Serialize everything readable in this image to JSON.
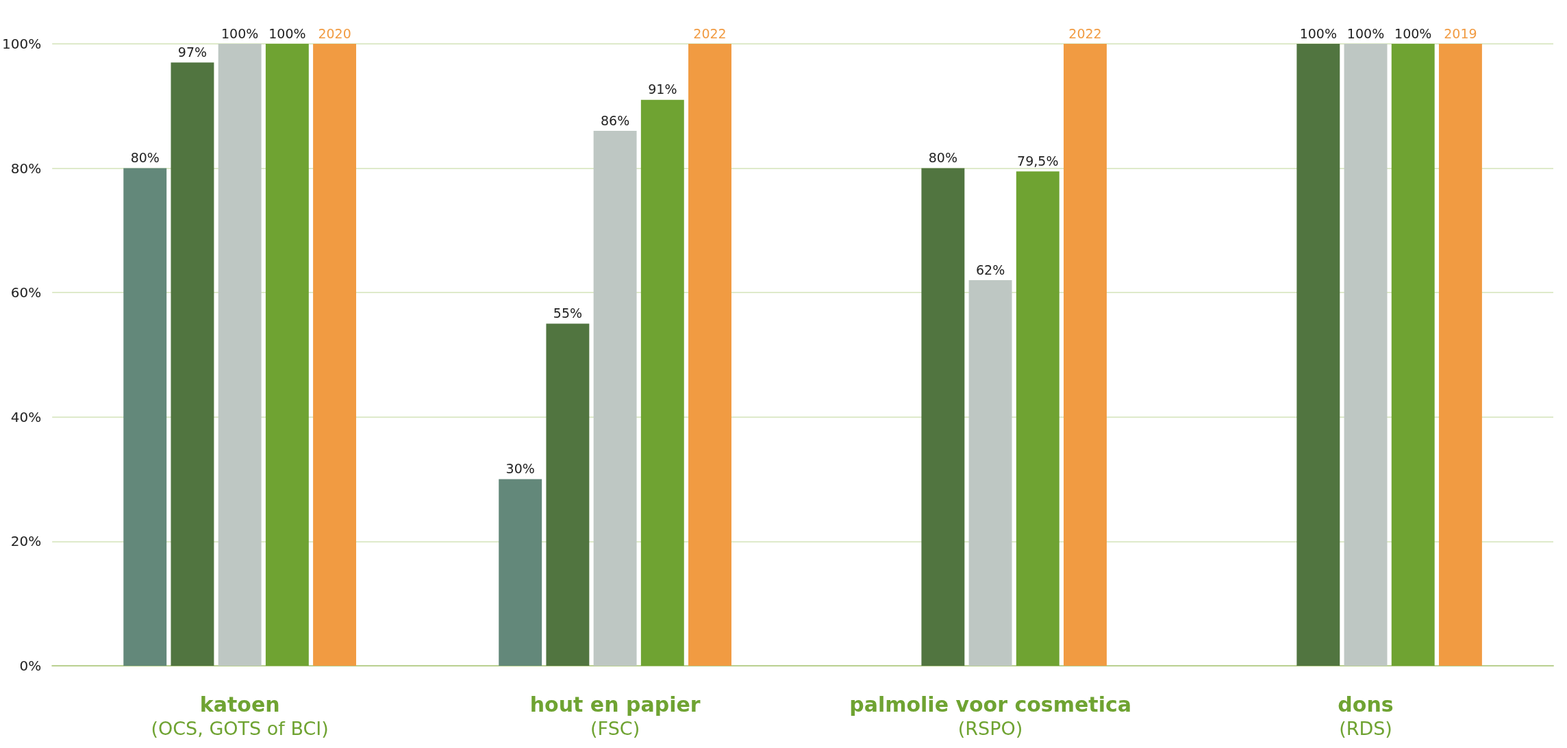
{
  "chart_data": {
    "type": "bar",
    "categories": [
      "katoen\n(OCS, GOTS of BCI)",
      "hout en papier\n(FSC)",
      "palmolie voor cosmetica\n(RSPO)",
      "dons\n(RDS)"
    ],
    "series": [
      {
        "color": "#63887a",
        "values": [
          80,
          30,
          null,
          null
        ],
        "value_labels": [
          "80%",
          "30%",
          null,
          null
        ]
      },
      {
        "color": "#517540",
        "values": [
          97,
          55,
          80,
          100
        ],
        "value_labels": [
          "97%",
          "55%",
          "80%",
          "100%"
        ]
      },
      {
        "color": "#bec7c3",
        "values": [
          100,
          86,
          62,
          100
        ],
        "value_labels": [
          "100%",
          "86%",
          "62%",
          "100%"
        ]
      },
      {
        "color": "#6fa332",
        "values": [
          100,
          91,
          79.5,
          100
        ],
        "value_labels": [
          "100%",
          "91%",
          "79,5%",
          "100%"
        ]
      },
      {
        "color": "#f19b42",
        "values": [
          100,
          100,
          100,
          100
        ]
      }
    ],
    "annotations": [
      "2020",
      "2022",
      "2022",
      "2019"
    ],
    "ylim": [
      0,
      100
    ],
    "yticks": [
      {
        "value": 0,
        "label": "0%"
      },
      {
        "value": 20,
        "label": "20%"
      },
      {
        "value": 40,
        "label": "40%"
      },
      {
        "value": 60,
        "label": "60%"
      },
      {
        "value": 80,
        "label": "80%"
      },
      {
        "value": 100,
        "label": "100%"
      }
    ],
    "grid": "y"
  }
}
